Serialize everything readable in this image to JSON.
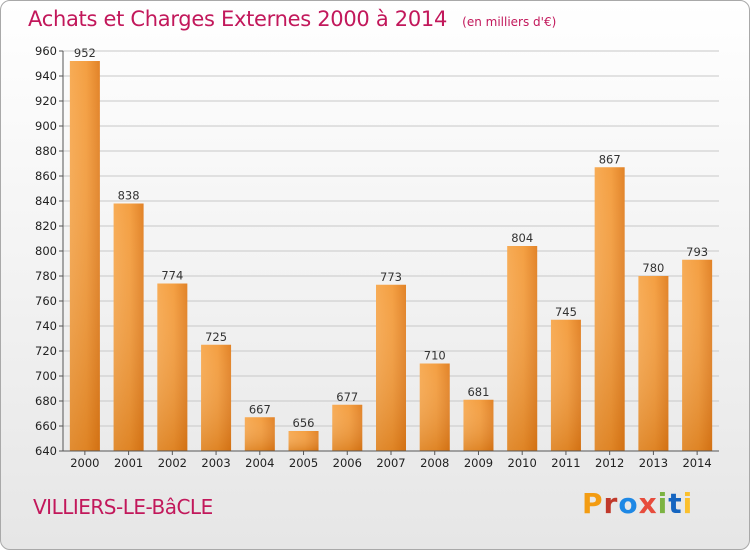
{
  "header": {
    "title": "Achats et Charges Externes 2000 à 2014",
    "subtitle": "(en milliers d'€)"
  },
  "footer": {
    "commune": "VILLIERS-LE-BâCLE",
    "logo_text": "Proxiti",
    "logo_colors": [
      "#f39c12",
      "#c0392b",
      "#1e88e5",
      "#e74c3c",
      "#7cb342",
      "#1565c0",
      "#fbc02d"
    ]
  },
  "chart_data": {
    "type": "bar",
    "categories": [
      "2000",
      "2001",
      "2002",
      "2003",
      "2004",
      "2005",
      "2006",
      "2007",
      "2008",
      "2009",
      "2010",
      "2011",
      "2012",
      "2013",
      "2014"
    ],
    "values": [
      952,
      838,
      774,
      725,
      667,
      656,
      677,
      773,
      710,
      681,
      804,
      745,
      867,
      780,
      793
    ],
    "title": "Achats et Charges Externes 2000 à 2014",
    "xlabel": "",
    "ylabel": "",
    "ylim": [
      640,
      960
    ],
    "yticks": [
      640,
      660,
      680,
      700,
      720,
      740,
      760,
      780,
      800,
      820,
      840,
      860,
      880,
      900,
      920,
      940,
      960
    ],
    "grid": true,
    "bar_color": "#f0922e",
    "data_labels": true
  }
}
